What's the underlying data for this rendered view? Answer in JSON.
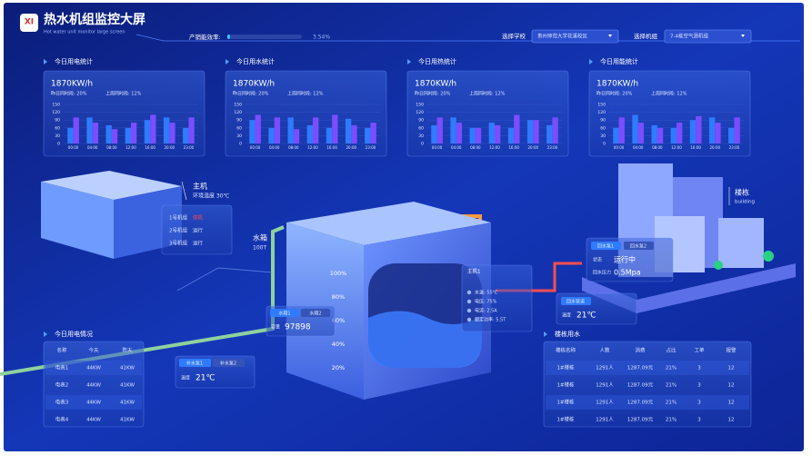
{
  "header": {
    "logo": "XI",
    "title": "热水机组监控大屏",
    "subtitle": "Hot water unit monitor large screen",
    "efficiency_label": "产销能效率:",
    "efficiency": {
      "value": 3.54,
      "label": "3.54%"
    },
    "school_label": "选择学校",
    "school": "贵州师范大学花溪校区",
    "unit_label": "选择机组",
    "unit": "7-4栋空气源机组"
  },
  "panels": [
    {
      "title": "今日用电统计",
      "value": "1870KW/h",
      "compare_day": "昨日同时段: 20%",
      "compare_week": "上周同时段: 12%",
      "chart": {
        "type": "bar",
        "categories": [
          "00:00",
          "04:00",
          "08:00",
          "12:00",
          "16:00",
          "20:00",
          "23:00"
        ],
        "series": [
          {
            "color": "#2f7bff",
            "values": [
              60,
              100,
              70,
              60,
              90,
              100,
              60
            ]
          },
          {
            "color": "#7b4dff",
            "values": [
              100,
              80,
              55,
              80,
              110,
              80,
              100
            ]
          }
        ],
        "ylim": [
          0,
          150
        ],
        "yticks": [
          0,
          30,
          60,
          90,
          120,
          150
        ]
      }
    },
    {
      "title": "今日用水统计",
      "value": "1870KW/h",
      "compare_day": "昨日同时段: 20%",
      "compare_week": "上周同时段: 12%",
      "chart": {
        "type": "bar",
        "categories": [
          "00:00",
          "04:00",
          "08:00",
          "12:00",
          "16:00",
          "20:00",
          "23:00"
        ],
        "series": [
          {
            "color": "#2f7bff",
            "values": [
              90,
              60,
              100,
              70,
              60,
              95,
              60
            ]
          },
          {
            "color": "#7b4dff",
            "values": [
              110,
              100,
              55,
              100,
              110,
              70,
              80
            ]
          }
        ],
        "ylim": [
          0,
          150
        ],
        "yticks": [
          0,
          30,
          60,
          90,
          120,
          150
        ]
      }
    },
    {
      "title": "今日用热统计",
      "value": "1870KW/h",
      "compare_day": "昨日同时段: 20%",
      "compare_week": "上周同时段: 12%",
      "chart": {
        "type": "bar",
        "categories": [
          "00:00",
          "04:00",
          "08:00",
          "12:00",
          "16:00",
          "20:00",
          "23:00"
        ],
        "series": [
          {
            "color": "#2f7bff",
            "values": [
              70,
              100,
              60,
              80,
              60,
              90,
              70
            ]
          },
          {
            "color": "#7b4dff",
            "values": [
              100,
              80,
              60,
              70,
              110,
              90,
              100
            ]
          }
        ],
        "ylim": [
          0,
          150
        ],
        "yticks": [
          0,
          30,
          60,
          90,
          120,
          150
        ]
      }
    },
    {
      "title": "今日用能统计",
      "value": "1870KW/h",
      "compare_day": "昨日同时段: 20%",
      "compare_week": "上周同时段: 12%",
      "chart": {
        "type": "bar",
        "categories": [
          "00:00",
          "04:00",
          "08:00",
          "12:00",
          "16:00",
          "20:00",
          "23:00"
        ],
        "series": [
          {
            "color": "#2f7bff",
            "values": [
              60,
              110,
              70,
              60,
              90,
              100,
              60
            ]
          },
          {
            "color": "#7b4dff",
            "values": [
              100,
              80,
              60,
              80,
              105,
              80,
              100
            ]
          }
        ],
        "ylim": [
          0,
          150
        ],
        "yticks": [
          0,
          30,
          60,
          90,
          120,
          150
        ]
      }
    }
  ],
  "host": {
    "title": "主机",
    "env": "环境温度 30℃",
    "units": [
      {
        "name": "1号机组",
        "status": "停机",
        "color": "#ff4d4f"
      },
      {
        "name": "2号机组",
        "status": "运行",
        "color": "#dbe6ff"
      },
      {
        "name": "3号机组",
        "status": "运行",
        "color": "#dbe6ff"
      }
    ]
  },
  "tank": {
    "title": "水箱",
    "capacity": "100T",
    "levels": [
      "100%",
      "80%",
      "60%",
      "40%",
      "20%"
    ],
    "tabs": [
      "水箱1",
      "水箱2"
    ],
    "volume_label": "容量",
    "volume": "97898"
  },
  "host_popup": {
    "title": "主机1",
    "rows": [
      "水温: 55℃",
      "电压: 75%",
      "电流: 2.5A",
      "额定功率: 5.5T"
    ]
  },
  "pump": {
    "tabs": [
      "回水泵1",
      "回水泵2"
    ],
    "status_label": "状态",
    "status": "运行中",
    "pressure_label": "回水压力",
    "pressure": "0.5Mpa",
    "pipe_title": "回水管道",
    "temp_label": "温度",
    "temp": "21℃"
  },
  "building": {
    "title": "楼栋",
    "subtitle": "building"
  },
  "inlet": {
    "tabs": [
      "补水泵1",
      "补水泵2"
    ],
    "temp_label": "温度",
    "temp": "21℃"
  },
  "power_table": {
    "title": "今日用电情况",
    "columns": [
      "名称",
      "今天",
      "昨天"
    ],
    "rows": [
      [
        "电表1",
        "44KW",
        "41KW"
      ],
      [
        "电表2",
        "44KW",
        "41KW"
      ],
      [
        "电表3",
        "44KW",
        "41KW"
      ],
      [
        "电表4",
        "44KW",
        "41KW"
      ]
    ]
  },
  "building_table": {
    "title": "楼栋用水",
    "columns": [
      "楼栋名称",
      "人数",
      "消费",
      "占比",
      "工单",
      "报警"
    ],
    "rows": [
      [
        "1#楼栋",
        "1291人",
        "1287.09元",
        "21%",
        "3",
        "12"
      ],
      [
        "1#楼栋",
        "1291人",
        "1287.09元",
        "21%",
        "3",
        "12"
      ],
      [
        "1#楼栋",
        "1291人",
        "1287.09元",
        "21%",
        "3",
        "12"
      ],
      [
        "1#楼栋",
        "1291人",
        "1287.09元",
        "21%",
        "3",
        "12"
      ]
    ]
  }
}
